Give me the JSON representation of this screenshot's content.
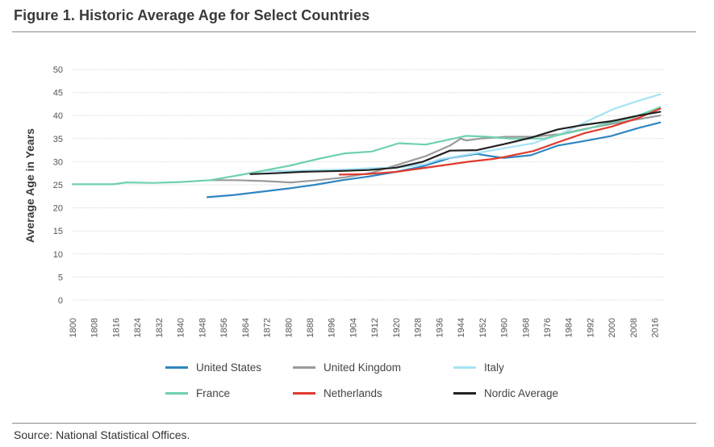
{
  "figure": {
    "title": "Figure 1. Historic Average Age for Select Countries",
    "source": "Source: National Statistical Offices."
  },
  "chart_data": {
    "type": "line",
    "title": "Figure 1. Historic Average Age for Select Countries",
    "xlabel": "",
    "ylabel": "Average Age in Years",
    "xlim": [
      1800,
      2020
    ],
    "ylim": [
      0,
      50
    ],
    "y_ticks": [
      "0",
      "5",
      "10",
      "15",
      "20",
      "25",
      "30",
      "35",
      "40",
      "45",
      "50"
    ],
    "x_ticks": [
      "1800",
      "1808",
      "1816",
      "1824",
      "1832",
      "1840",
      "1848",
      "1856",
      "1864",
      "1872",
      "1880",
      "1888",
      "1896",
      "1904",
      "1912",
      "1920",
      "1928",
      "1936",
      "1944",
      "1952",
      "1960",
      "1968",
      "1976",
      "1984",
      "1992",
      "2000",
      "2008",
      "2016"
    ],
    "grid": "horizontal",
    "legend_position": "bottom",
    "series": [
      {
        "name": "United States",
        "color": "#2e86c1",
        "points": [
          [
            1850,
            22.3
          ],
          [
            1860,
            22.8
          ],
          [
            1870,
            23.5
          ],
          [
            1880,
            24.2
          ],
          [
            1890,
            25
          ],
          [
            1900,
            26
          ],
          [
            1910,
            26.8
          ],
          [
            1920,
            27.8
          ],
          [
            1930,
            29
          ],
          [
            1940,
            30.8
          ],
          [
            1950,
            31.7
          ],
          [
            1955,
            31.2
          ],
          [
            1960,
            30.8
          ],
          [
            1970,
            31.4
          ],
          [
            1980,
            33.5
          ],
          [
            1990,
            34.5
          ],
          [
            2000,
            35.6
          ],
          [
            2010,
            37.3
          ],
          [
            2018,
            38.5
          ]
        ]
      },
      {
        "name": "United Kingdom",
        "color": "#9a9a9a",
        "points": [
          [
            1851,
            26
          ],
          [
            1861,
            26
          ],
          [
            1871,
            25.8
          ],
          [
            1881,
            25.5
          ],
          [
            1891,
            26
          ],
          [
            1901,
            26.6
          ],
          [
            1911,
            27.6
          ],
          [
            1921,
            29.4
          ],
          [
            1931,
            31.2
          ],
          [
            1940,
            33.5
          ],
          [
            1944,
            35
          ],
          [
            1946,
            34.6
          ],
          [
            1951,
            35
          ],
          [
            1961,
            35.4
          ],
          [
            1971,
            35.4
          ],
          [
            1981,
            36
          ],
          [
            1991,
            37.2
          ],
          [
            2001,
            38.3
          ],
          [
            2011,
            39.3
          ],
          [
            2018,
            40
          ]
        ]
      },
      {
        "name": "Italy",
        "color": "#a6e3f5",
        "points": [
          [
            1861,
            27
          ],
          [
            1871,
            28
          ],
          [
            1881,
            28
          ],
          [
            1901,
            28.3
          ],
          [
            1911,
            28.6
          ],
          [
            1921,
            28.7
          ],
          [
            1931,
            29.5
          ],
          [
            1936,
            30.5
          ],
          [
            1951,
            32
          ],
          [
            1961,
            33
          ],
          [
            1971,
            34
          ],
          [
            1981,
            36
          ],
          [
            1991,
            38.8
          ],
          [
            2001,
            41.5
          ],
          [
            2011,
            43.4
          ],
          [
            2018,
            44.6
          ]
        ]
      },
      {
        "name": "France",
        "color": "#6fd1ac",
        "points": [
          [
            1800,
            25.1
          ],
          [
            1815,
            25.1
          ],
          [
            1820,
            25.5
          ],
          [
            1830,
            25.4
          ],
          [
            1840,
            25.6
          ],
          [
            1851,
            26
          ],
          [
            1861,
            27
          ],
          [
            1872,
            28.2
          ],
          [
            1881,
            29.2
          ],
          [
            1891,
            30.6
          ],
          [
            1901,
            31.8
          ],
          [
            1911,
            32.2
          ],
          [
            1921,
            34
          ],
          [
            1931,
            33.7
          ],
          [
            1946,
            35.6
          ],
          [
            1954,
            35.4
          ],
          [
            1962,
            35
          ],
          [
            1968,
            35
          ],
          [
            1975,
            35
          ],
          [
            1982,
            36
          ],
          [
            1990,
            37
          ],
          [
            1999,
            38.4
          ],
          [
            2008,
            39.6
          ],
          [
            2018,
            41.8
          ]
        ]
      },
      {
        "name": "Netherlands",
        "color": "#e03a2e",
        "points": [
          [
            1899,
            27.2
          ],
          [
            1909,
            27.3
          ],
          [
            1920,
            27.8
          ],
          [
            1930,
            28.6
          ],
          [
            1947,
            30
          ],
          [
            1956,
            30.6
          ],
          [
            1960,
            31
          ],
          [
            1971,
            32.3
          ],
          [
            1980,
            34.2
          ],
          [
            1990,
            36.2
          ],
          [
            2000,
            37.6
          ],
          [
            2010,
            39.5
          ],
          [
            2018,
            41.5
          ]
        ]
      },
      {
        "name": "Nordic Average",
        "color": "#222222",
        "points": [
          [
            1866,
            27.3
          ],
          [
            1875,
            27.5
          ],
          [
            1885,
            27.8
          ],
          [
            1900,
            28
          ],
          [
            1910,
            28.2
          ],
          [
            1920,
            28.7
          ],
          [
            1930,
            30
          ],
          [
            1940,
            32.4
          ],
          [
            1950,
            32.5
          ],
          [
            1960,
            33.8
          ],
          [
            1970,
            35.2
          ],
          [
            1980,
            37
          ],
          [
            1990,
            38
          ],
          [
            2000,
            38.8
          ],
          [
            2010,
            40
          ],
          [
            2018,
            40.8
          ]
        ]
      }
    ]
  }
}
